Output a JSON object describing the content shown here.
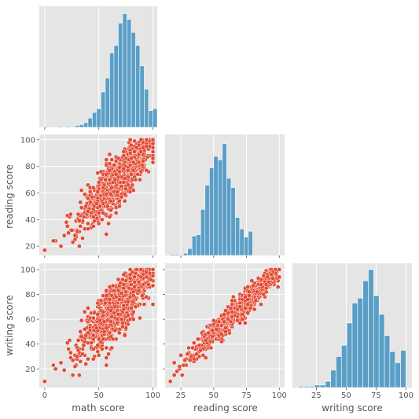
{
  "chart_data": {
    "type": "pairplot",
    "variables": [
      "math score",
      "reading score",
      "writing score"
    ],
    "corner": true,
    "style": "ggplot",
    "grid": true,
    "colors": {
      "hist": "#5b9ec6",
      "scatter": "#e24a33",
      "panel": "#e5e5e5",
      "grid": "#ffffff"
    },
    "xlabels": [
      "math score",
      "reading score",
      "writing score"
    ],
    "ylabels": [
      "reading score",
      "writing score"
    ],
    "math_xlim": [
      -5,
      104
    ],
    "reading_range": [
      13,
      104
    ],
    "writing_range": [
      5,
      105
    ],
    "math_ticks": [
      "0",
      "50",
      "100"
    ],
    "reading_ticks": [
      "20",
      "40",
      "60",
      "80",
      "100"
    ],
    "reading_xticks": [
      "25",
      "50",
      "75",
      "100"
    ],
    "writing_ticks": [
      "20",
      "40",
      "60",
      "80",
      "100"
    ],
    "writing_xticks": [
      "25",
      "50",
      "75",
      "100"
    ],
    "hist_math": {
      "bin_start": 0,
      "bin_width": 4,
      "counts": [
        1,
        0,
        0,
        1,
        0,
        1,
        0,
        2,
        3,
        5,
        10,
        16,
        20,
        38,
        53,
        80,
        88,
        112,
        122,
        116,
        102,
        88,
        66,
        41,
        18,
        20
      ],
      "ymax": 130
    },
    "hist_reading": {
      "bin_start": 17,
      "bin_width": 3.3,
      "counts": [
        1,
        1,
        0,
        2,
        6,
        17,
        18,
        40,
        61,
        76,
        86,
        83,
        97,
        67,
        59,
        33,
        23,
        16,
        21
      ],
      "ymax": 105
    },
    "hist_writing": {
      "bin_start": 10,
      "bin_width": 4.5,
      "counts": [
        1,
        1,
        1,
        2,
        2,
        5,
        14,
        25,
        34,
        52,
        68,
        72,
        86,
        95,
        74,
        59,
        42,
        29,
        20,
        30
      ],
      "ymax": 100
    },
    "scatter_math_reading": {
      "n": 1000,
      "outliers": [
        [
          0,
          17
        ],
        [
          8,
          24
        ],
        [
          18,
          28
        ],
        [
          20,
          38
        ],
        [
          22,
          30
        ],
        [
          25,
          32
        ],
        [
          24,
          44
        ],
        [
          26,
          23
        ],
        [
          28,
          28
        ],
        [
          30,
          31
        ],
        [
          32,
          39
        ],
        [
          35,
          26
        ],
        [
          40,
          33
        ]
      ]
    },
    "scatter_math_writing": {
      "n": 1000,
      "outliers": [
        [
          0,
          10
        ],
        [
          8,
          23
        ],
        [
          18,
          19
        ],
        [
          22,
          36
        ],
        [
          24,
          33
        ],
        [
          26,
          15
        ],
        [
          28,
          22
        ],
        [
          30,
          30
        ],
        [
          33,
          26
        ],
        [
          35,
          32
        ],
        [
          38,
          24
        ]
      ]
    },
    "scatter_reading_writing": {
      "n": 1000,
      "outliers": [
        [
          17,
          10
        ],
        [
          22,
          18
        ],
        [
          24,
          22
        ],
        [
          26,
          15
        ],
        [
          28,
          27
        ],
        [
          30,
          32
        ],
        [
          33,
          30
        ]
      ]
    }
  }
}
